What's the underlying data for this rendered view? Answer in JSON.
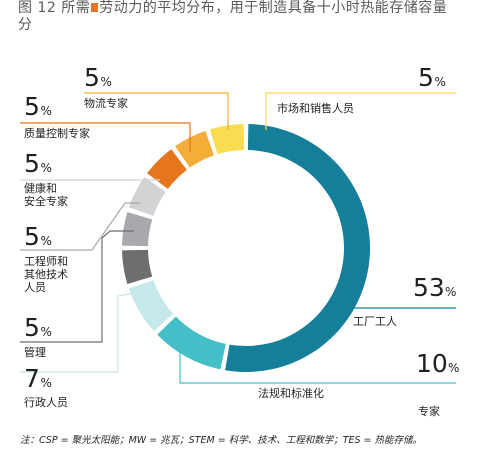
{
  "figure": {
    "title_prefix": "图 12 所需",
    "title_suffix": "劳动力的平均分布，用于制造具备十小时热能存储容量",
    "title_line2": "分",
    "note": "注：CSP = 聚光太阳能；MW = 兆瓦；STEM = 科学、技术、工程和数学；TES = 热能存储。"
  },
  "chart_data": {
    "type": "pie",
    "percent_sign": "%",
    "slices": [
      {
        "label_lines": [
          "工厂工人"
        ],
        "value": 53,
        "color": "#157f9a"
      },
      {
        "label_lines": [
          "法规和标准化",
          "专家"
        ],
        "value": 10,
        "color": "#44bfc7"
      },
      {
        "label_lines": [
          "行政人员"
        ],
        "value": 7,
        "color": "#c7e8ea"
      },
      {
        "label_lines": [
          "管理"
        ],
        "value": 5,
        "color": "#6d6e70"
      },
      {
        "label_lines": [
          "工程师和",
          "其他技术",
          "人员"
        ],
        "value": 5,
        "color": "#a7a9ac"
      },
      {
        "label_lines": [
          "健康和",
          "安全专家"
        ],
        "value": 5,
        "color": "#d1d3d4"
      },
      {
        "label_lines": [
          "质量控制专家"
        ],
        "value": 5,
        "color": "#e5761e"
      },
      {
        "label_lines": [
          "物流专家"
        ],
        "value": 5,
        "color": "#f5ad3a"
      },
      {
        "label_lines": [
          "市场和销售人员"
        ],
        "value": 5,
        "color": "#f9dc52"
      }
    ]
  }
}
